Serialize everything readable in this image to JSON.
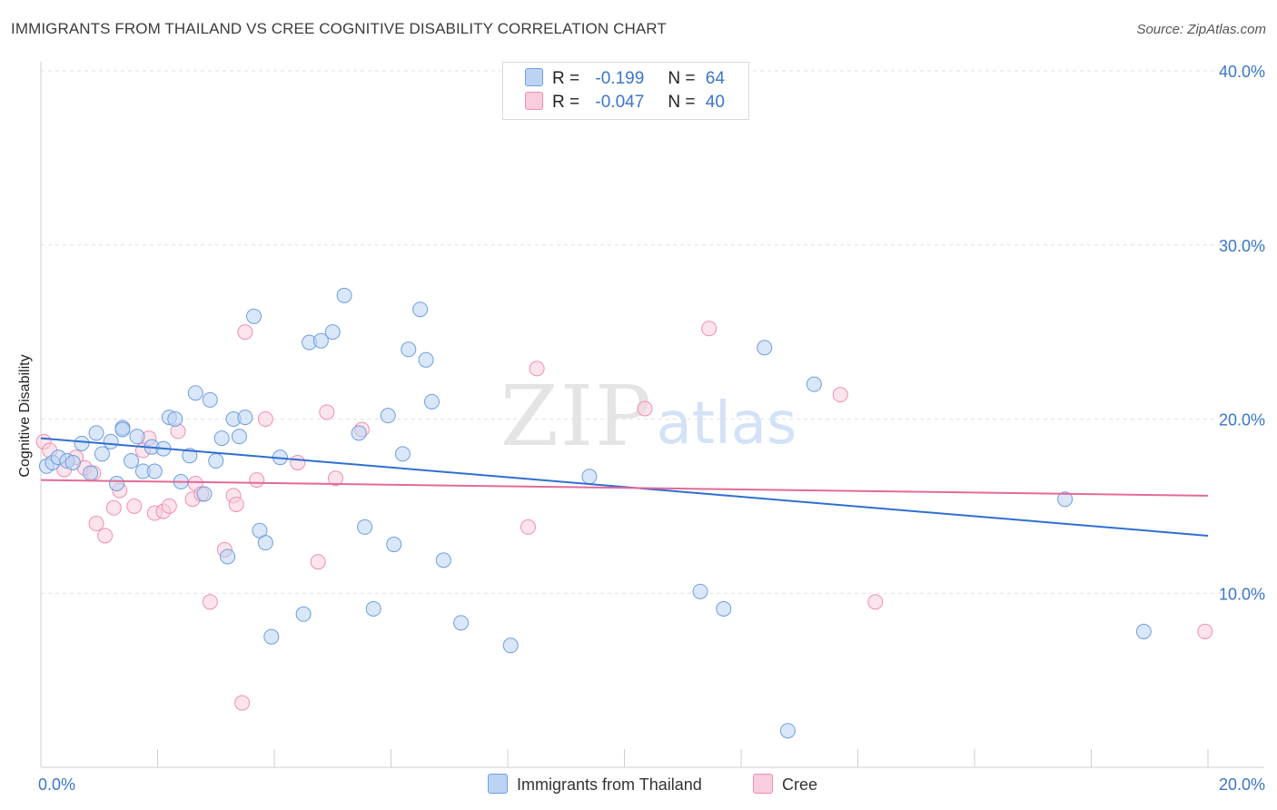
{
  "header": {
    "title": "IMMIGRANTS FROM THAILAND VS CREE COGNITIVE DISABILITY CORRELATION CHART",
    "source": "Source: ZipAtlas.com"
  },
  "watermark": {
    "part1": "ZIP",
    "part2": "atlas"
  },
  "legend": {
    "r_label": "R =",
    "n_label": "N =",
    "entries": [
      {
        "r": "-0.199",
        "n": "64"
      },
      {
        "r": "-0.047",
        "n": "40"
      }
    ]
  },
  "bottom_legend": {
    "series1": "Immigrants from Thailand",
    "series2": "Cree"
  },
  "chart_data": {
    "type": "scatter",
    "title": "IMMIGRANTS FROM THAILAND VS CREE COGNITIVE DISABILITY CORRELATION CHART",
    "xlabel": "",
    "ylabel": "Cognitive Disability",
    "xlim": [
      0,
      20
    ],
    "ylim": [
      0,
      40
    ],
    "x_ticks": [
      "0.0%",
      "20.0%"
    ],
    "y_ticks": [
      "10.0%",
      "20.0%",
      "30.0%",
      "40.0%"
    ],
    "grid": "horizontal dashed",
    "legend_position": "top-center",
    "colors": {
      "series1": "#6f9ee0",
      "series1_fill": "#bcd3f3",
      "series1_line": "#2f6fd1",
      "series2": "#f08fb0",
      "series2_fill": "#f9cddd",
      "series2_line": "#e36a97",
      "tick_text": "#3b76c9"
    },
    "series": [
      {
        "name": "Immigrants from Thailand",
        "trend": {
          "x": [
            0,
            20
          ],
          "y": [
            18.9,
            13.3
          ]
        },
        "points": [
          [
            0.1,
            17.3
          ],
          [
            0.2,
            17.5
          ],
          [
            0.3,
            17.8
          ],
          [
            0.45,
            17.6
          ],
          [
            0.55,
            17.5
          ],
          [
            0.7,
            18.6
          ],
          [
            0.85,
            16.9
          ],
          [
            0.95,
            19.2
          ],
          [
            1.05,
            18.0
          ],
          [
            1.2,
            18.7
          ],
          [
            1.3,
            16.3
          ],
          [
            1.4,
            19.5
          ],
          [
            1.55,
            17.6
          ],
          [
            1.65,
            19.0
          ],
          [
            1.75,
            17.0
          ],
          [
            1.9,
            18.4
          ],
          [
            1.95,
            17.0
          ],
          [
            2.1,
            18.3
          ],
          [
            2.2,
            20.1
          ],
          [
            2.3,
            20.0
          ],
          [
            2.4,
            16.4
          ],
          [
            2.55,
            17.9
          ],
          [
            2.65,
            21.5
          ],
          [
            2.8,
            15.7
          ],
          [
            2.9,
            21.1
          ],
          [
            3.0,
            17.6
          ],
          [
            3.1,
            18.9
          ],
          [
            3.2,
            12.1
          ],
          [
            3.3,
            20.0
          ],
          [
            3.4,
            19.0
          ],
          [
            3.5,
            20.1
          ],
          [
            3.65,
            25.9
          ],
          [
            3.75,
            13.6
          ],
          [
            3.85,
            12.9
          ],
          [
            3.95,
            7.5
          ],
          [
            4.1,
            17.8
          ],
          [
            4.5,
            8.8
          ],
          [
            4.6,
            24.4
          ],
          [
            4.8,
            24.5
          ],
          [
            5.0,
            25.0
          ],
          [
            5.2,
            27.1
          ],
          [
            5.45,
            19.2
          ],
          [
            5.55,
            13.8
          ],
          [
            5.7,
            9.1
          ],
          [
            5.95,
            20.2
          ],
          [
            6.05,
            12.8
          ],
          [
            6.2,
            18.0
          ],
          [
            6.3,
            24.0
          ],
          [
            6.5,
            26.3
          ],
          [
            6.6,
            23.4
          ],
          [
            6.7,
            21.0
          ],
          [
            6.9,
            11.9
          ],
          [
            7.2,
            8.3
          ],
          [
            8.05,
            7.0
          ],
          [
            8.45,
            38.5
          ],
          [
            9.4,
            16.7
          ],
          [
            11.3,
            10.1
          ],
          [
            11.7,
            9.1
          ],
          [
            12.4,
            24.1
          ],
          [
            12.8,
            2.1
          ],
          [
            13.25,
            22.0
          ],
          [
            17.55,
            15.4
          ],
          [
            18.9,
            7.8
          ],
          [
            1.4,
            19.4
          ]
        ]
      },
      {
        "name": "Cree",
        "trend": {
          "x": [
            0,
            20
          ],
          "y": [
            16.5,
            15.6
          ]
        },
        "points": [
          [
            0.05,
            18.7
          ],
          [
            0.15,
            18.2
          ],
          [
            0.4,
            17.1
          ],
          [
            0.6,
            17.8
          ],
          [
            0.75,
            17.2
          ],
          [
            0.9,
            16.9
          ],
          [
            0.95,
            14.0
          ],
          [
            1.1,
            13.3
          ],
          [
            1.25,
            14.9
          ],
          [
            1.35,
            15.9
          ],
          [
            1.6,
            15.0
          ],
          [
            1.75,
            18.2
          ],
          [
            1.85,
            18.9
          ],
          [
            1.95,
            14.6
          ],
          [
            2.1,
            14.7
          ],
          [
            2.2,
            15.0
          ],
          [
            2.35,
            19.3
          ],
          [
            2.6,
            15.4
          ],
          [
            2.65,
            16.3
          ],
          [
            2.75,
            15.7
          ],
          [
            2.9,
            9.5
          ],
          [
            3.15,
            12.5
          ],
          [
            3.3,
            15.6
          ],
          [
            3.35,
            15.1
          ],
          [
            3.45,
            3.7
          ],
          [
            3.5,
            25.0
          ],
          [
            3.7,
            16.5
          ],
          [
            3.85,
            20.0
          ],
          [
            4.4,
            17.5
          ],
          [
            4.75,
            11.8
          ],
          [
            4.9,
            20.4
          ],
          [
            5.05,
            16.6
          ],
          [
            5.5,
            19.4
          ],
          [
            8.35,
            13.8
          ],
          [
            8.5,
            22.9
          ],
          [
            10.35,
            20.6
          ],
          [
            11.45,
            25.2
          ],
          [
            13.7,
            21.4
          ],
          [
            14.3,
            9.5
          ],
          [
            19.95,
            7.8
          ]
        ]
      }
    ]
  }
}
